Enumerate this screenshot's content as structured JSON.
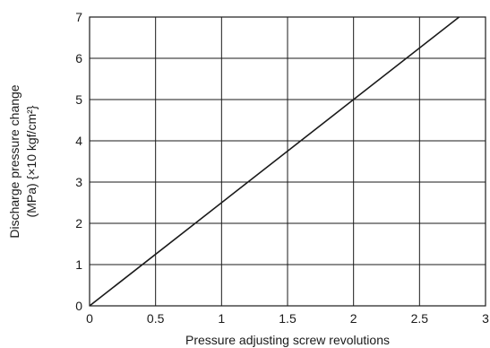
{
  "chart_data": {
    "type": "line",
    "xlabel": "Pressure adjusting screw revolutions",
    "ylabel_line1": "Discharge pressure change",
    "ylabel_line2": "(MPa) {×10 kgf/cm²}",
    "xlim": [
      0,
      3
    ],
    "ylim": [
      0,
      7
    ],
    "x_ticks": [
      "0",
      "0.5",
      "1",
      "1.5",
      "2",
      "2.5",
      "3"
    ],
    "y_ticks": [
      "0",
      "1",
      "2",
      "3",
      "4",
      "5",
      "6",
      "7"
    ],
    "grid": true,
    "series": [
      {
        "x": [
          0,
          2.8
        ],
        "y": [
          0,
          7.0
        ]
      }
    ]
  }
}
